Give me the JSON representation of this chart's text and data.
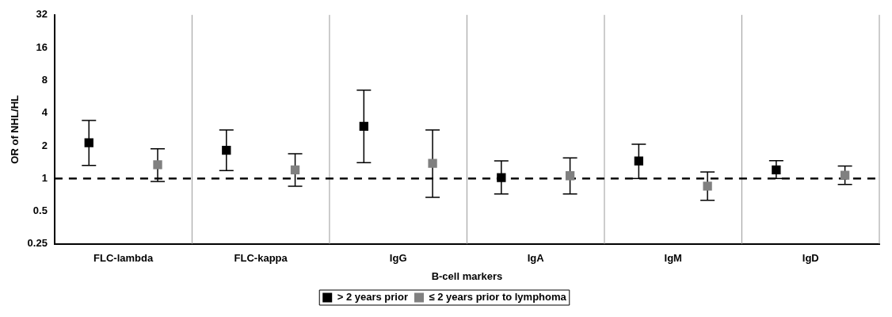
{
  "chart_data": {
    "type": "scatter",
    "xlabel": "B-cell markers",
    "ylabel": "OR of NHL/HL",
    "categories": [
      "FLC-lambda",
      "FLC-kappa",
      "IgG",
      "IgA",
      "IgM",
      "IgD"
    ],
    "series": [
      {
        "name": "> 2 years prior",
        "color": "#000000",
        "values": [
          2.13,
          1.82,
          3.02,
          1.02,
          1.45,
          1.2
        ],
        "errors": [
          [
            1.32,
            3.42
          ],
          [
            1.18,
            2.79
          ],
          [
            1.4,
            6.5
          ],
          [
            0.72,
            1.45
          ],
          [
            1.0,
            2.07
          ],
          [
            1.0,
            1.46
          ]
        ]
      },
      {
        "name": "≤ 2 years prior to lymphoma",
        "color": "#808080",
        "values": [
          1.34,
          1.2,
          1.38,
          1.06,
          0.85,
          1.07
        ],
        "errors": [
          [
            0.94,
            1.88
          ],
          [
            0.85,
            1.69
          ],
          [
            0.67,
            2.79
          ],
          [
            0.72,
            1.55
          ],
          [
            0.63,
            1.15
          ],
          [
            0.88,
            1.3
          ]
        ]
      }
    ],
    "log": "y",
    "ylim": [
      0.25,
      32
    ],
    "yticks": [
      0.25,
      0.5,
      1,
      2,
      4,
      8,
      16,
      32
    ],
    "grid": "x",
    "legend": "bottom",
    "marker": "square",
    "ref_lines": [
      {
        "axis": "y",
        "value": 1,
        "color": "#000000",
        "line_style": "dashed"
      }
    ]
  }
}
